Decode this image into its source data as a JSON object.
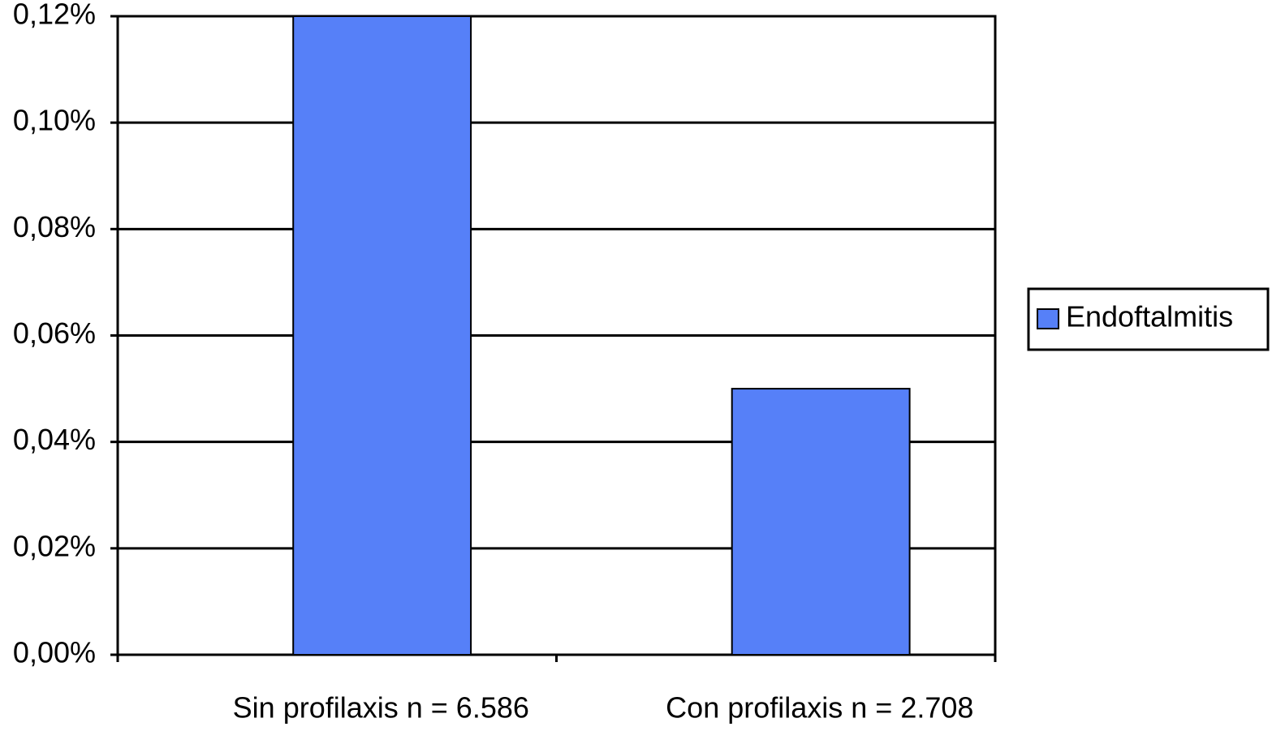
{
  "chart_data": {
    "type": "bar",
    "categories": [
      "Sin profilaxis n = 6.586",
      "Con profilaxis n = 2.708"
    ],
    "series": [
      {
        "name": "Endoftalmitis",
        "color": "#5680f8",
        "values": [
          0.12,
          0.05
        ]
      }
    ],
    "ylim": [
      0,
      0.12
    ],
    "yticks": [
      {
        "value": 0,
        "label": "0,00%"
      },
      {
        "value": 0.02,
        "label": "0,02%"
      },
      {
        "value": 0.04,
        "label": "0,04%"
      },
      {
        "value": 0.06,
        "label": "0,06%"
      },
      {
        "value": 0.08,
        "label": "0,08%"
      },
      {
        "value": 0.1,
        "label": "0,10%"
      },
      {
        "value": 0.12,
        "label": "0,12%"
      }
    ],
    "grid": true,
    "legend": "right"
  }
}
